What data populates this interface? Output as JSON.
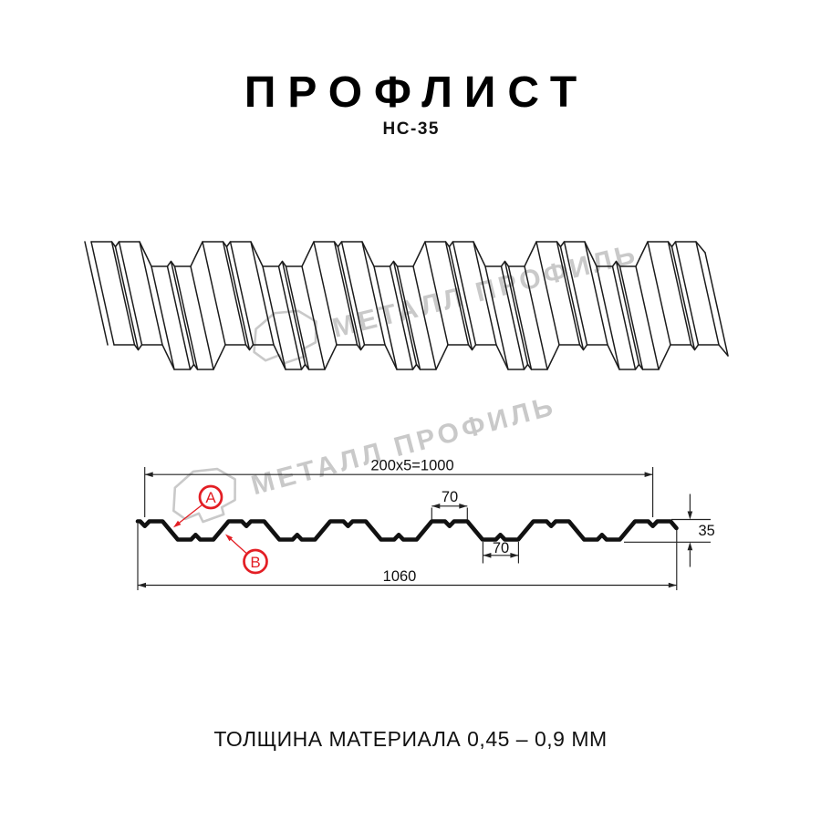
{
  "header": {
    "title": "ПРОФЛИСТ",
    "subtitle": "НС-35"
  },
  "watermark": {
    "text": "МЕТАЛЛ ПРОФИЛЬ",
    "color": "#c9c9c9"
  },
  "drawing": {
    "accent_color": "#e31e24",
    "line_color": "#1b1b1b",
    "dimensions": {
      "coverage_width": "200x5=1000",
      "overall_width": "1060",
      "crest_width": "70",
      "valley_width": "70",
      "profile_height": "35"
    },
    "labels": {
      "side_a": "А",
      "side_b": "В"
    }
  },
  "footer": {
    "thickness_note": "ТОЛЩИНА МАТЕРИАЛА 0,45 – 0,9 ММ"
  }
}
